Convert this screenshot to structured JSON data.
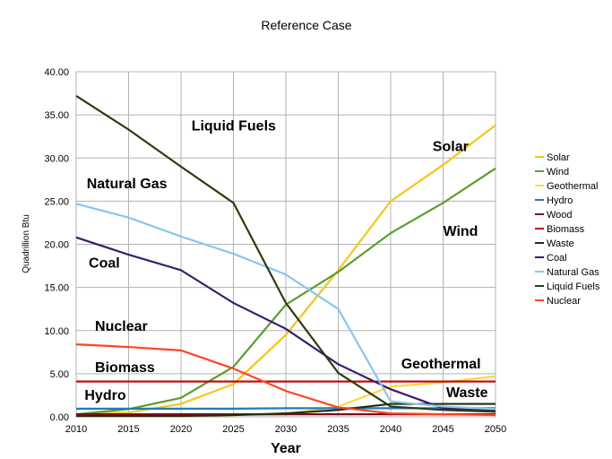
{
  "chart_data": {
    "type": "line",
    "title": "Reference Case",
    "xlabel": "Year",
    "ylabel": "Quadrillion Btu",
    "x": [
      2010,
      2015,
      2020,
      2025,
      2030,
      2035,
      2040,
      2045,
      2050
    ],
    "xlim": [
      2010,
      2050
    ],
    "ylim": [
      0,
      40
    ],
    "yticks": [
      "0.00",
      "5.00",
      "10.00",
      "15.00",
      "20.00",
      "25.00",
      "30.00",
      "35.00",
      "40.00"
    ],
    "xticks": [
      "2010",
      "2015",
      "2020",
      "2025",
      "2030",
      "2035",
      "2040",
      "2045",
      "2050"
    ],
    "grid": true,
    "legend_position": "right",
    "series": [
      {
        "name": "Solar",
        "color": "#f5c518",
        "values": [
          0.3,
          0.5,
          1.5,
          3.8,
          9.5,
          17.0,
          25.0,
          29.2,
          33.8
        ]
      },
      {
        "name": "Wind",
        "color": "#5a9e2e",
        "values": [
          0.3,
          0.9,
          2.2,
          5.8,
          13.0,
          16.8,
          21.3,
          24.8,
          28.8
        ]
      },
      {
        "name": "Geothermal",
        "color": "#ffd740",
        "values": [
          0.1,
          0.1,
          0.1,
          0.2,
          0.3,
          1.2,
          3.5,
          4.0,
          4.7
        ]
      },
      {
        "name": "Hydro",
        "color": "#1c7cc4",
        "values": [
          0.95,
          0.95,
          0.95,
          0.95,
          1.0,
          1.0,
          1.0,
          1.0,
          1.0
        ]
      },
      {
        "name": "Wood",
        "color": "#7b0a1a",
        "values": [
          0.3,
          0.3,
          0.3,
          0.3,
          0.3,
          0.3,
          0.3,
          0.3,
          0.3
        ]
      },
      {
        "name": "Biomass",
        "color": "#c00000",
        "values": [
          4.1,
          4.1,
          4.1,
          4.1,
          4.1,
          4.1,
          4.1,
          4.1,
          4.1
        ]
      },
      {
        "name": "Waste",
        "color": "#1e3010",
        "values": [
          0.1,
          0.1,
          0.1,
          0.2,
          0.4,
          0.8,
          1.5,
          1.5,
          1.5
        ]
      },
      {
        "name": "Coal",
        "color": "#3a1c6e",
        "values": [
          20.8,
          18.8,
          17.0,
          13.2,
          10.2,
          6.1,
          3.2,
          1.0,
          0.7
        ]
      },
      {
        "name": "Natural Gas",
        "color": "#8ac6ee",
        "values": [
          24.7,
          23.1,
          20.9,
          18.9,
          16.5,
          12.5,
          1.8,
          1.2,
          0.9
        ]
      },
      {
        "name": "Liquid Fuels",
        "color": "#2c3c0e",
        "values": [
          37.2,
          33.3,
          29.0,
          24.8,
          13.2,
          5.1,
          1.2,
          0.8,
          0.6
        ]
      },
      {
        "name": "Nuclear",
        "color": "#ff4422",
        "values": [
          8.4,
          8.1,
          7.7,
          5.6,
          3.0,
          1.1,
          0.4,
          0.3,
          0.2
        ]
      }
    ],
    "annotations": [
      {
        "text": "Liquid Fuels",
        "x": 2021,
        "y": 33.2
      },
      {
        "text": "Natural Gas",
        "x": 2011,
        "y": 26.5
      },
      {
        "text": "Coal",
        "x": 2011.2,
        "y": 17.3
      },
      {
        "text": "Nuclear",
        "x": 2011.8,
        "y": 10.0
      },
      {
        "text": "Biomass",
        "x": 2011.8,
        "y": 5.2
      },
      {
        "text": "Hydro",
        "x": 2010.8,
        "y": 2.0
      },
      {
        "text": "Solar",
        "x": 2044,
        "y": 30.8
      },
      {
        "text": "Wind",
        "x": 2045,
        "y": 21.0
      },
      {
        "text": "Geothermal",
        "x": 2041,
        "y": 5.6
      },
      {
        "text": "Waste",
        "x": 2045.3,
        "y": 2.3
      }
    ]
  }
}
